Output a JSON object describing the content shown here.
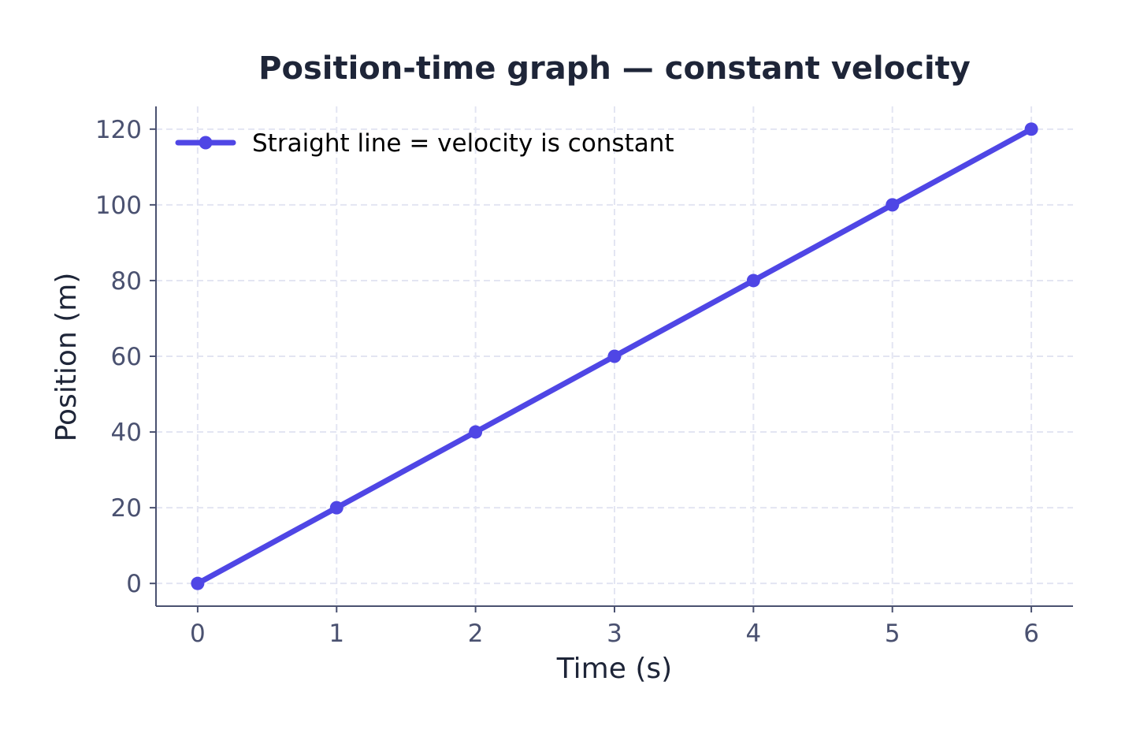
{
  "chart_data": {
    "type": "line",
    "title": "Position-time graph — constant velocity",
    "xlabel": "Time (s)",
    "ylabel": "Position (m)",
    "x": [
      0,
      1,
      2,
      3,
      4,
      5,
      6
    ],
    "xlim": [
      -0.3,
      6.3
    ],
    "ylim": [
      -6,
      126
    ],
    "x_ticks": [
      0,
      1,
      2,
      3,
      4,
      5,
      6
    ],
    "y_ticks": [
      0,
      20,
      40,
      60,
      80,
      100,
      120
    ],
    "grid": true,
    "grid_style": "dashed",
    "legend_position": "top-left",
    "series": [
      {
        "name": "Straight line = velocity is constant",
        "color": "#4f46e5",
        "marker": "circle",
        "values": [
          0,
          20,
          40,
          60,
          80,
          100,
          120
        ]
      }
    ]
  }
}
